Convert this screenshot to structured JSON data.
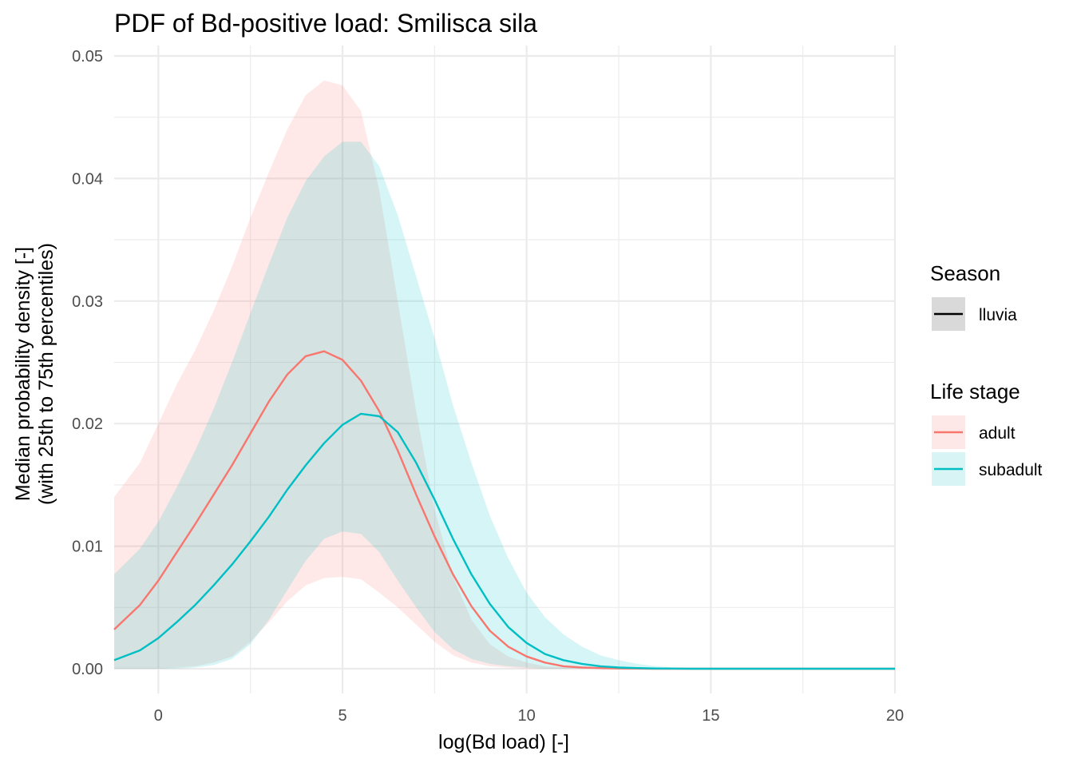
{
  "chart_data": {
    "type": "area",
    "title": "PDF of Bd-positive load: Smilisca sila",
    "xlabel": "log(Bd load) [-]",
    "ylabel_lines": [
      "Median probability density [-]",
      "(with 25th to 75th percentiles)"
    ],
    "xlim": [
      -1.2,
      20
    ],
    "ylim": [
      0,
      0.05
    ],
    "x_ticks": [
      0,
      5,
      10,
      15,
      20
    ],
    "x_tick_labels": [
      "0",
      "5",
      "10",
      "15",
      "20"
    ],
    "y_ticks": [
      0,
      0.01,
      0.02,
      0.03,
      0.04,
      0.05
    ],
    "y_tick_labels": [
      "0.00",
      "0.01",
      "0.02",
      "0.03",
      "0.04",
      "0.05"
    ],
    "grid": true,
    "legend_position": "right",
    "legends": [
      {
        "title": "Season",
        "entries": [
          {
            "label": "lluvia",
            "line_color": "#000000",
            "fill_color": "#d9d9d9"
          }
        ]
      },
      {
        "title": "Life stage",
        "entries": [
          {
            "label": "adult",
            "line_color": "#F8766D",
            "fill_color": "#fde8e7"
          },
          {
            "label": "subadult",
            "line_color": "#00BFC4",
            "fill_color": "#d9f4f5"
          }
        ]
      }
    ],
    "x": [
      -1.2,
      -0.5,
      0,
      0.5,
      1,
      1.5,
      2,
      2.5,
      3,
      3.5,
      4,
      4.5,
      5,
      5.5,
      6,
      6.5,
      7,
      7.5,
      8,
      8.5,
      9,
      9.5,
      10,
      10.5,
      11,
      11.5,
      12,
      12.5,
      13,
      13.5,
      14,
      14.5,
      15,
      15.5,
      16,
      16.5,
      17,
      17.5,
      18,
      18.5,
      19,
      19.5,
      20
    ],
    "series": [
      {
        "name": "adult",
        "color": "#F8766D",
        "fill": "#F8766D",
        "median": [
          0.0032,
          0.0052,
          0.0072,
          0.0095,
          0.0118,
          0.0142,
          0.0166,
          0.0192,
          0.0218,
          0.024,
          0.0255,
          0.0259,
          0.0252,
          0.0235,
          0.021,
          0.0178,
          0.0142,
          0.0108,
          0.0077,
          0.0051,
          0.0031,
          0.0018,
          0.001,
          0.0005,
          0.0002,
          0.0001,
          5e-05,
          2e-05,
          1e-05,
          0,
          0,
          0,
          0,
          0,
          0,
          0,
          0,
          0,
          0,
          0,
          0,
          0,
          0
        ],
        "p25": [
          0,
          0,
          0,
          0.0001,
          0.0002,
          0.0005,
          0.001,
          0.0022,
          0.0038,
          0.0055,
          0.0068,
          0.0074,
          0.0075,
          0.0073,
          0.0062,
          0.005,
          0.0036,
          0.0022,
          0.0011,
          0.0005,
          0.0002,
          0.0001,
          0,
          0,
          0,
          0,
          0,
          0,
          0,
          0,
          0,
          0,
          0,
          0,
          0,
          0,
          0,
          0,
          0,
          0,
          0,
          0,
          0
        ],
        "p75": [
          0.014,
          0.0168,
          0.02,
          0.0232,
          0.026,
          0.0292,
          0.0328,
          0.0368,
          0.0405,
          0.044,
          0.0468,
          0.048,
          0.0476,
          0.0455,
          0.039,
          0.03,
          0.021,
          0.013,
          0.0075,
          0.004,
          0.002,
          0.001,
          0.0005,
          0.0002,
          0.0001,
          0,
          0,
          0,
          0,
          0,
          0,
          0,
          0,
          0,
          0,
          0,
          0,
          0,
          0,
          0,
          0,
          0,
          0
        ]
      },
      {
        "name": "subadult",
        "color": "#00BFC4",
        "fill": "#00BFC4",
        "median": [
          0.0007,
          0.0015,
          0.0025,
          0.0038,
          0.0052,
          0.0068,
          0.0085,
          0.0104,
          0.0124,
          0.0146,
          0.0166,
          0.0184,
          0.0199,
          0.0208,
          0.0206,
          0.0193,
          0.0168,
          0.0138,
          0.0106,
          0.0077,
          0.0053,
          0.0034,
          0.0021,
          0.0012,
          0.0007,
          0.0004,
          0.0002,
          0.0001,
          5e-05,
          2e-05,
          1e-05,
          0,
          0,
          0,
          0,
          0,
          0,
          0,
          0,
          0,
          0,
          0,
          0
        ],
        "p25": [
          0,
          0,
          0,
          0,
          0.0001,
          0.0003,
          0.0008,
          0.002,
          0.004,
          0.0064,
          0.0088,
          0.0106,
          0.0112,
          0.011,
          0.0095,
          0.0072,
          0.005,
          0.003,
          0.0016,
          0.0008,
          0.0004,
          0.0002,
          0.0001,
          0,
          0,
          0,
          0,
          0,
          0,
          0,
          0,
          0,
          0,
          0,
          0,
          0,
          0,
          0,
          0,
          0,
          0,
          0,
          0
        ],
        "p75": [
          0.0077,
          0.0098,
          0.012,
          0.0148,
          0.0178,
          0.0212,
          0.025,
          0.029,
          0.033,
          0.0368,
          0.0398,
          0.0418,
          0.043,
          0.043,
          0.041,
          0.037,
          0.032,
          0.027,
          0.0215,
          0.0168,
          0.0125,
          0.009,
          0.0062,
          0.0042,
          0.0028,
          0.0018,
          0.0011,
          0.0007,
          0.0004,
          0.0002,
          0.0001,
          5e-05,
          2e-05,
          1e-05,
          0,
          0,
          0,
          0,
          0,
          0,
          0,
          0,
          0
        ]
      }
    ]
  }
}
